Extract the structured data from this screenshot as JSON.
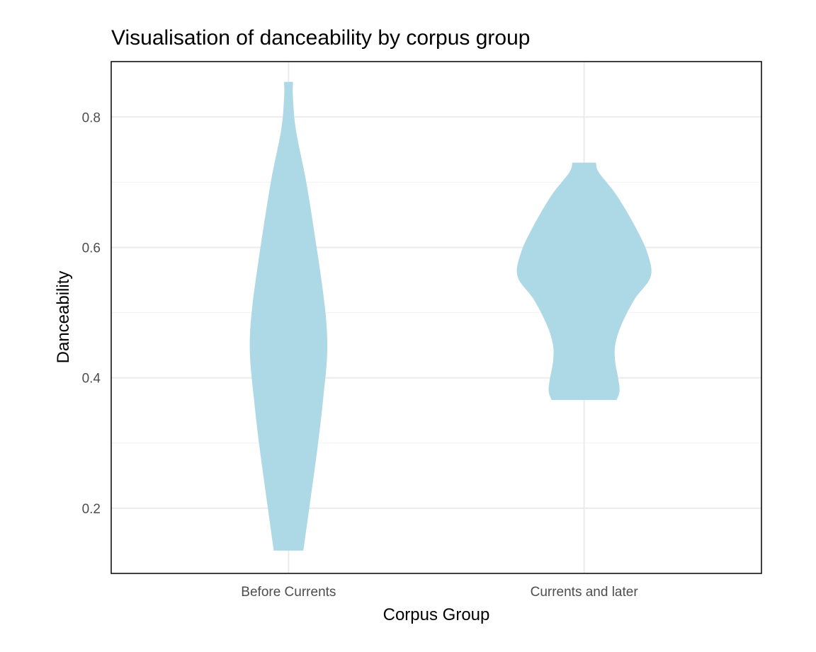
{
  "chart_data": {
    "type": "violin",
    "title": "Visualisation of danceability by corpus group",
    "xlabel": "Corpus Group",
    "ylabel": "Danceability",
    "categories": [
      "Before Currents",
      "Currents and later"
    ],
    "ylim": [
      0.1,
      0.885
    ],
    "yticks": [
      0.2,
      0.4,
      0.6,
      0.8
    ],
    "grid": true,
    "fill_color": "#add8e6",
    "violins": [
      {
        "category": "Before Currents",
        "profile": [
          {
            "y": 0.135,
            "halfwidth": 0.1
          },
          {
            "y": 0.2,
            "halfwidth": 0.14
          },
          {
            "y": 0.3,
            "halfwidth": 0.2
          },
          {
            "y": 0.38,
            "halfwidth": 0.24
          },
          {
            "y": 0.43,
            "halfwidth": 0.26
          },
          {
            "y": 0.47,
            "halfwidth": 0.26
          },
          {
            "y": 0.52,
            "halfwidth": 0.24
          },
          {
            "y": 0.6,
            "halfwidth": 0.19
          },
          {
            "y": 0.7,
            "halfwidth": 0.12
          },
          {
            "y": 0.78,
            "halfwidth": 0.05
          },
          {
            "y": 0.83,
            "halfwidth": 0.03
          },
          {
            "y": 0.854,
            "halfwidth": 0.03
          }
        ]
      },
      {
        "category": "Currents and later",
        "profile": [
          {
            "y": 0.366,
            "halfwidth": 0.22
          },
          {
            "y": 0.38,
            "halfwidth": 0.24
          },
          {
            "y": 0.4,
            "halfwidth": 0.23
          },
          {
            "y": 0.425,
            "halfwidth": 0.21
          },
          {
            "y": 0.45,
            "halfwidth": 0.21
          },
          {
            "y": 0.48,
            "halfwidth": 0.25
          },
          {
            "y": 0.52,
            "halfwidth": 0.34
          },
          {
            "y": 0.555,
            "halfwidth": 0.45
          },
          {
            "y": 0.59,
            "halfwidth": 0.43
          },
          {
            "y": 0.63,
            "halfwidth": 0.35
          },
          {
            "y": 0.68,
            "halfwidth": 0.22
          },
          {
            "y": 0.715,
            "halfwidth": 0.1
          },
          {
            "y": 0.73,
            "halfwidth": 0.08
          }
        ]
      }
    ]
  }
}
